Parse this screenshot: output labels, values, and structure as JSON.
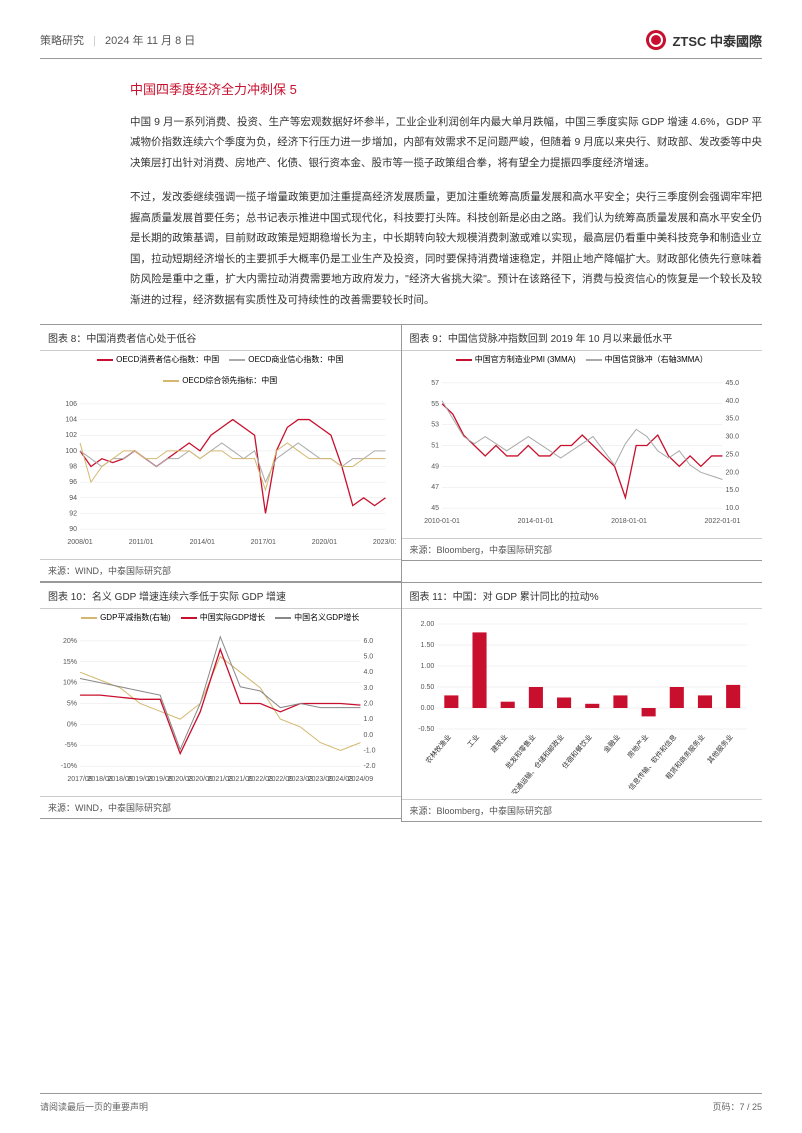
{
  "header": {
    "category": "策略研究",
    "date": "2024 年 11 月 8 日",
    "logo_text": "ZTSC 中泰國際"
  },
  "section_title": "中国四季度经济全力冲刺保 5",
  "paragraphs": [
    "中国 9 月一系列消费、投资、生产等宏观数据好坏参半，工业企业利润创年内最大单月跌幅，中国三季度实际 GDP 增速 4.6%，GDP 平减物价指数连续六个季度为负，经济下行压力进一步增加，内部有效需求不足问题严峻，但随着 9 月底以来央行、财政部、发改委等中央决策层打出针对消费、房地产、化债、银行资本金、股市等一揽子政策组合拳，将有望全力提振四季度经济增速。",
    "不过，发改委继续强调一揽子增量政策更加注重提高经济发展质量，更加注重统筹高质量发展和高水平安全；央行三季度例会强调牢牢把握高质量发展首要任务；总书记表示推进中国式现代化，科技要打头阵。科技创新是必由之路。我们认为统筹高质量发展和高水平安全仍是长期的政策基调，目前财政政策是短期稳增长为主，中长期转向较大规模消费刺激或难以实现，最高层仍看重中美科技竞争和制造业立国，拉动短期经济增长的主要抓手大概率仍是工业生产及投资，同时要保持消费增速稳定，并阻止地产降幅扩大。财政部化债先行意味着防风险是重中之重，扩大内需拉动消费需要地方政府发力，\"经济大省挑大梁\"。预计在该路径下，消费与投资信心的恢复是一个较长及较渐进的过程，经济数据有实质性及可持续性的改善需要较长时间。"
  ],
  "chart8": {
    "title": "图表 8：中国消费者信心处于低谷",
    "legend": [
      {
        "label": "OECD消费者信心指数：中国",
        "color": "#c8102e"
      },
      {
        "label": "OECD商业信心指数：中国",
        "color": "#aaaaaa"
      },
      {
        "label": "OECD综合领先指标：中国",
        "color": "#d4b870"
      }
    ],
    "y_min": 90,
    "y_max": 106,
    "y_step": 2,
    "x_labels": [
      "2008/01",
      "2011/01",
      "2014/01",
      "2017/01",
      "2020/01",
      "2023/01"
    ],
    "series": [
      {
        "color": "#c8102e",
        "width": 1.3,
        "points": [
          100,
          98,
          99,
          98.5,
          99,
          100,
          99,
          98,
          99,
          100,
          101,
          100,
          102,
          103,
          104,
          103,
          102,
          92,
          100,
          103,
          104,
          104,
          103,
          102,
          98,
          93,
          94,
          93,
          94
        ]
      },
      {
        "color": "#aaaaaa",
        "width": 1,
        "points": [
          100,
          99,
          98,
          99,
          99,
          100,
          99,
          98,
          99,
          99,
          100,
          99,
          100,
          101,
          100,
          99,
          100,
          96,
          99,
          100,
          101,
          100,
          99,
          99,
          98,
          99,
          99,
          100,
          100
        ]
      },
      {
        "color": "#d4b870",
        "width": 1,
        "points": [
          101,
          96,
          98,
          99,
          100,
          100,
          99,
          99,
          100,
          100,
          100,
          99,
          100,
          100,
          99,
          99,
          99,
          95,
          100,
          101,
          100,
          99,
          99,
          99,
          98,
          98,
          99,
          99,
          99
        ]
      }
    ],
    "source": "来源：WIND，中泰国际研究部"
  },
  "chart9": {
    "title": "图表 9：中国信贷脉冲指数回到 2019 年 10 月以来最低水平",
    "legend": [
      {
        "label": "中国官方制造业PMI (3MMA)",
        "color": "#c8102e"
      },
      {
        "label": "中国信贷脉冲（右轴3MMA）",
        "color": "#aaaaaa"
      }
    ],
    "y1_min": 45,
    "y1_max": 57,
    "y1_step": 2,
    "y2_min": 10,
    "y2_max": 45,
    "y2_step": 5,
    "x_labels": [
      "2010-01-01",
      "2014-01-01",
      "2018-01-01",
      "2022-01-01"
    ],
    "series": [
      {
        "color": "#c8102e",
        "width": 1.3,
        "axis": "left",
        "points": [
          55,
          54,
          52,
          51,
          50,
          51,
          50,
          50,
          51,
          50,
          50,
          51,
          51,
          52,
          51,
          50,
          49,
          46,
          51,
          51,
          52,
          50,
          49,
          50,
          49,
          50,
          50
        ]
      },
      {
        "color": "#aaaaaa",
        "width": 1,
        "axis": "right",
        "points": [
          40,
          35,
          30,
          28,
          30,
          28,
          26,
          28,
          30,
          28,
          26,
          24,
          26,
          28,
          30,
          26,
          22,
          28,
          32,
          30,
          26,
          24,
          26,
          22,
          20,
          19,
          18
        ]
      }
    ],
    "source": "来源：Bloomberg，中泰国际研究部"
  },
  "chart10": {
    "title": "图表 10：名义 GDP 增速连续六季低于实际 GDP 增速",
    "legend": [
      {
        "label": "GDP平减指数(右轴)",
        "color": "#d4b870"
      },
      {
        "label": "中国实际GDP增长",
        "color": "#c8102e"
      },
      {
        "label": "中国名义GDP增长",
        "color": "#888888"
      }
    ],
    "y1_min": -10,
    "y1_max": 20,
    "y1_step": 5,
    "y2_min": -2,
    "y2_max": 6,
    "y2_step": 1,
    "x_labels": [
      "2017/09",
      "2018/03",
      "2018/09",
      "2019/03",
      "2019/09",
      "2020/03",
      "2020/09",
      "2021/03",
      "2021/09",
      "2022/03",
      "2022/09",
      "2023/03",
      "2023/09",
      "2024/03",
      "2024/09"
    ],
    "series": [
      {
        "color": "#d4b870",
        "width": 1,
        "axis": "right",
        "points": [
          4,
          3.5,
          3,
          2,
          1.5,
          1,
          2,
          5,
          4,
          3,
          1,
          0.5,
          -0.5,
          -1,
          -0.5
        ]
      },
      {
        "color": "#c8102e",
        "width": 1.3,
        "axis": "left",
        "points": [
          7,
          7,
          6.5,
          6,
          6,
          -7,
          3,
          18,
          5,
          5,
          3,
          5,
          5,
          5,
          4.6
        ]
      },
      {
        "color": "#888888",
        "width": 1,
        "axis": "left",
        "points": [
          11,
          10,
          9,
          8,
          7,
          -6,
          5,
          21,
          9,
          8,
          4,
          5,
          4,
          4,
          4
        ]
      }
    ],
    "source": "来源：WIND，中泰国际研究部"
  },
  "chart11": {
    "title": "图表 11：中国：对 GDP 累计同比的拉动%",
    "y_min": -0.5,
    "y_max": 2,
    "y_step": 0.5,
    "bars": [
      {
        "label": "农林牧渔业",
        "value": 0.3
      },
      {
        "label": "工业",
        "value": 1.8
      },
      {
        "label": "建筑业",
        "value": 0.15
      },
      {
        "label": "批发和零售业",
        "value": 0.5
      },
      {
        "label": "交通运输、仓储和邮政业",
        "value": 0.25
      },
      {
        "label": "住宿和餐饮业",
        "value": 0.1
      },
      {
        "label": "金融业",
        "value": 0.3
      },
      {
        "label": "房地产业",
        "value": -0.2
      },
      {
        "label": "信息传输、软件和信息",
        "value": 0.5
      },
      {
        "label": "租赁和商务服务业",
        "value": 0.3
      },
      {
        "label": "其他服务业",
        "value": 0.55
      }
    ],
    "bar_color": "#c8102e",
    "source": "来源：Bloomberg，中泰国际研究部"
  },
  "footer": {
    "left": "请阅读最后一页的重要声明",
    "right": "页码：7 / 25"
  }
}
